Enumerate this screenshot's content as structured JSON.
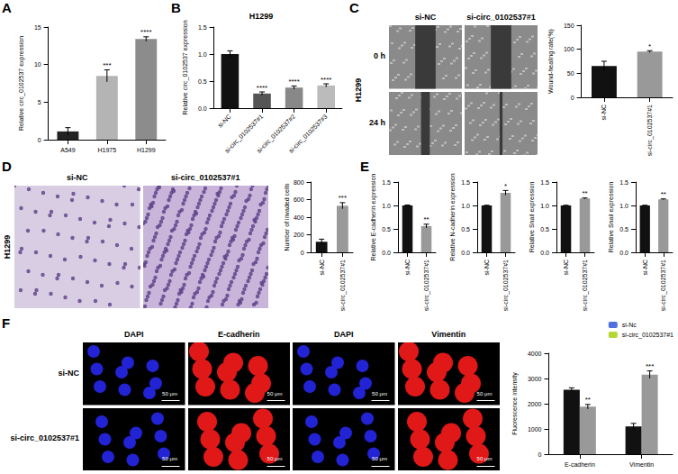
{
  "chart_data": [
    {
      "panel": "A",
      "type": "bar",
      "y_label": "Relative circ_0102537 expression",
      "categories": [
        "A549",
        "H1975",
        "H1299"
      ],
      "values": [
        1.1,
        8.5,
        13.4
      ],
      "errors": [
        0.5,
        0.8,
        0.3
      ],
      "annotations": [
        null,
        "***",
        "****"
      ],
      "colors": [
        "#222222",
        "#b4b4b4",
        "#8c8c8c"
      ],
      "ylim": [
        0,
        15
      ],
      "yticks": [
        0,
        5,
        10,
        15
      ],
      "grid": false
    },
    {
      "panel": "B",
      "type": "bar",
      "title": "H1299",
      "y_label": "Relative circ_0102537 expression",
      "categories": [
        "si-NC",
        "si-circ_0102537#1",
        "si-circ_0102537#2",
        "si-circ_0102537#3"
      ],
      "values": [
        1.0,
        0.27,
        0.38,
        0.42
      ],
      "errors": [
        0.06,
        0.03,
        0.03,
        0.03
      ],
      "annotations": [
        null,
        "****",
        "****",
        "****"
      ],
      "colors": [
        "#111111",
        "#555555",
        "#888888",
        "#bbbbbb"
      ],
      "ylim": [
        0,
        1.5
      ],
      "yticks": [
        {
          "value": 0,
          "label": "0.0"
        },
        0.5,
        {
          "value": 1,
          "label": "1.0"
        },
        1.5
      ],
      "grid": false
    },
    {
      "type": "bar",
      "y_label": "Wound-healing rate(%)",
      "categories": [
        "si-NC",
        "si-circ_0102537#1"
      ],
      "values": [
        65,
        95
      ],
      "errors": [
        10,
        2
      ],
      "annotations": [
        null,
        "*"
      ],
      "colors": [
        "#111111",
        "#999999"
      ],
      "ylim": [
        0,
        150
      ],
      "yticks": [
        0,
        50,
        100,
        150
      ],
      "grid": false
    },
    {
      "type": "bar",
      "y_label": "Number of invaded cells",
      "categories": [
        "si-NC",
        "si-circ_0102537#1"
      ],
      "values": [
        120,
        530
      ],
      "errors": [
        30,
        35
      ],
      "annotations": [
        null,
        "***"
      ],
      "colors": [
        "#111111",
        "#999999"
      ],
      "ylim": [
        0,
        800
      ],
      "yticks": [
        0,
        200,
        400,
        600,
        800
      ],
      "grid": false
    },
    {
      "panel": "E",
      "type": "bar",
      "y_label": "Relative E-cadherin expression",
      "categories": [
        "si-NC",
        "si-circ_0102537#1"
      ],
      "values": [
        1.0,
        0.56
      ],
      "errors": [
        0.01,
        0.04
      ],
      "annotations": [
        null,
        "**"
      ],
      "colors": [
        "#111111",
        "#999999"
      ],
      "ylim": [
        0,
        1.5
      ],
      "yticks": [
        {
          "value": 0,
          "label": "0.0"
        },
        0.5,
        {
          "value": 1,
          "label": "1.0"
        },
        1.5
      ],
      "grid": false
    },
    {
      "type": "bar",
      "y_label": "Relative N-cadherin expression",
      "categories": [
        "si-NC",
        "si-circ_0102537#1"
      ],
      "values": [
        1.0,
        1.27
      ],
      "errors": [
        0.005,
        0.05
      ],
      "annotations": [
        null,
        "*"
      ],
      "colors": [
        "#111111",
        "#999999"
      ],
      "ylim": [
        0,
        1.5
      ],
      "yticks": [
        {
          "value": 0,
          "label": "0.0"
        },
        0.5,
        {
          "value": 1,
          "label": "1.0"
        },
        1.5
      ],
      "grid": false
    },
    {
      "type": "bar",
      "y_label": "Relative Snail expression",
      "categories": [
        "si-NC",
        "si-circ_0102537#1"
      ],
      "values": [
        1.0,
        1.15
      ],
      "errors": [
        0.005,
        0.01
      ],
      "annotations": [
        null,
        "**"
      ],
      "colors": [
        "#111111",
        "#999999"
      ],
      "ylim": [
        0,
        1.5
      ],
      "yticks": [
        {
          "value": 0,
          "label": "0.0"
        },
        0.5,
        {
          "value": 1,
          "label": "1.0"
        },
        1.5
      ],
      "grid": false
    },
    {
      "type": "bar",
      "y_label": "Relative Snail expression",
      "categories": [
        "si-NC",
        "si-circ_0102537#1"
      ],
      "values": [
        1.0,
        1.13
      ],
      "errors": [
        0.005,
        0.01
      ],
      "annotations": [
        null,
        "**"
      ],
      "colors": [
        "#111111",
        "#999999"
      ],
      "ylim": [
        0,
        1.5
      ],
      "yticks": [
        {
          "value": 0,
          "label": "0.0"
        },
        0.5,
        {
          "value": 1,
          "label": "1.0"
        },
        1.5
      ],
      "grid": false
    },
    {
      "type": "bar",
      "y_label": "Fluorescence intensity",
      "categories": [
        "E-cadherin",
        "Vimentin"
      ],
      "series": [
        {
          "name": "si-Nc",
          "color": "#111111",
          "values": [
            2550,
            1100
          ],
          "errors": [
            80,
            120
          ],
          "annotations": [
            null,
            null
          ]
        },
        {
          "name": "si-circ_0102537#1",
          "color": "#999999",
          "values": [
            1880,
            3150
          ],
          "errors": [
            90,
            150
          ],
          "annotations": [
            "**",
            "***"
          ]
        }
      ],
      "ylim": [
        0,
        4000
      ],
      "yticks": [
        0,
        1000,
        2000,
        3000,
        4000
      ],
      "legend": "upper right",
      "grid": false
    }
  ],
  "image_panels": [
    {
      "panel": "C",
      "side_label": "H1299",
      "col_labels": [
        "si-NC",
        "si-circ_0102537#1"
      ],
      "row_labels": [
        "0 h",
        "24 h"
      ],
      "colors": [
        "#8a8a8a",
        "#8a8a8a"
      ]
    },
    {
      "panel": "D",
      "side_label": "H1299",
      "col_labels": [
        "si-NC",
        "si-circ_0102537#1"
      ],
      "colors": [
        "#d9cde3",
        "#c9b5da"
      ]
    },
    {
      "panel": "F",
      "col_labels": [
        "DAPI",
        "E-cadherin",
        "DAPI",
        "Vimentin"
      ],
      "row_labels": [
        "si-NC",
        "si-circ_0102537#1"
      ],
      "scale_label": "50 μm",
      "colors": [
        "#2323d6",
        "#e01818",
        "#2323d6",
        "#e01818"
      ]
    }
  ]
}
